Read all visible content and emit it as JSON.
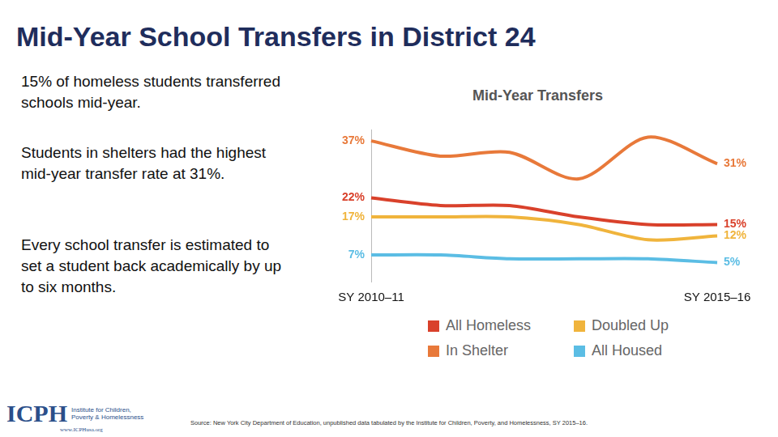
{
  "page": {
    "title": "Mid-Year School Transfers in District 24",
    "text": [
      "15% of homeless students transferred schools mid-year.",
      "Students in shelters had the highest mid-year transfer rate at 31%.",
      "Every school transfer is estimated to set a student back academically by up to six months."
    ],
    "logo": {
      "name": "ICPH",
      "lines": [
        "Institute for Children,",
        "Poverty & Homelessness"
      ],
      "url": "www.ICPHusa.org"
    },
    "source": "Source: New York City Department of Education, unpublished data tabulated by the Institute for Children, Poverty, and Homelessness, SY 2015–16."
  },
  "chart_data": {
    "type": "line",
    "title": "Mid-Year Transfers",
    "categories": [
      "SY 2010–11",
      null,
      null,
      null,
      null,
      "SY 2015–16"
    ],
    "series": [
      {
        "name": "All Homeless",
        "color": "#d9412b",
        "values": [
          22,
          20,
          20,
          17,
          15,
          15
        ],
        "value_labels": [
          "22%",
          null,
          null,
          null,
          null,
          "15%"
        ]
      },
      {
        "name": "Doubled Up",
        "color": "#f0b43c",
        "values": [
          17,
          17,
          17,
          15,
          11,
          12
        ],
        "value_labels": [
          "17%",
          null,
          null,
          null,
          null,
          "12%"
        ]
      },
      {
        "name": "In Shelter",
        "color": "#e8793a",
        "values": [
          37,
          33,
          34,
          27,
          38,
          31
        ],
        "value_labels": [
          "37%",
          null,
          null,
          null,
          null,
          "31%"
        ]
      },
      {
        "name": "All Housed",
        "color": "#5bbde4",
        "values": [
          7,
          7,
          6,
          6,
          6,
          5
        ],
        "value_labels": [
          "7%",
          null,
          null,
          null,
          null,
          "5%"
        ]
      }
    ],
    "ylim": [
      0,
      40
    ],
    "grid": false,
    "legend": "bottom",
    "data_labels": true,
    "tick_labels": "x"
  }
}
